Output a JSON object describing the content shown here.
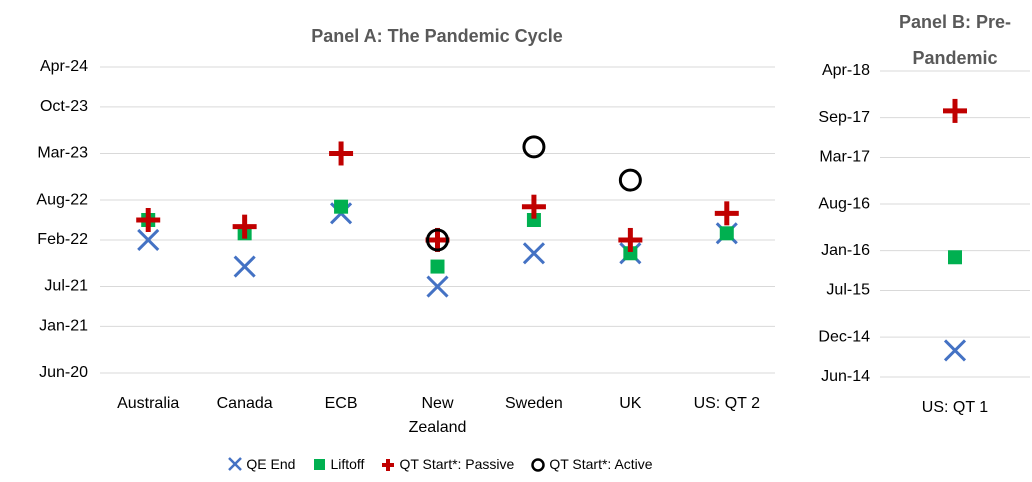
{
  "chart_data": [
    {
      "type": "scatter",
      "title": "Panel A: The Pandemic Cycle",
      "categories": [
        "Australia",
        "Canada",
        "ECB",
        "New Zealand",
        "Sweden",
        "UK",
        "US: QT 2"
      ],
      "series": [
        {
          "name": "QE End",
          "color": "#4472c4",
          "marker": "x",
          "values": [
            "2022-02",
            "2021-10",
            "2022-06",
            "2021-07",
            "2021-12",
            "2021-12",
            "2022-03"
          ]
        },
        {
          "name": "Liftoff",
          "color": "#00b050",
          "marker": "square",
          "values": [
            "2022-05",
            "2022-03",
            "2022-07",
            "2021-10",
            "2022-05",
            "2021-12",
            "2022-03"
          ]
        },
        {
          "name": "QT Start*: Passive",
          "color": "#c00000",
          "marker": "plus",
          "values": [
            "2022-05",
            "2022-04",
            "2023-03",
            "2022-02",
            "2022-07",
            "2022-02",
            "2022-06"
          ]
        },
        {
          "name": "QT Start*: Active",
          "color": "#000000",
          "marker": "circle",
          "values": [
            null,
            null,
            null,
            "2022-02",
            "2023-04",
            "2022-11",
            null
          ]
        }
      ],
      "ylim": [
        "2020-06",
        "2024-04"
      ],
      "yticks": [
        {
          "value": "2020-06",
          "label": "Jun-20"
        },
        {
          "value": "2021-01",
          "label": "Jan-21"
        },
        {
          "value": "2021-07",
          "label": "Jul-21"
        },
        {
          "value": "2022-02",
          "label": "Feb-22"
        },
        {
          "value": "2022-08",
          "label": "Aug-22"
        },
        {
          "value": "2023-03",
          "label": "Mar-23"
        },
        {
          "value": "2023-10",
          "label": "Oct-23"
        },
        {
          "value": "2024-04",
          "label": "Apr-24"
        }
      ],
      "grid": true,
      "legend": "bottom"
    },
    {
      "type": "scatter",
      "title": "Panel B: Pre-Pandemic",
      "categories": [
        "US: QT 1"
      ],
      "series": [
        {
          "name": "QE End",
          "color": "#4472c4",
          "marker": "x",
          "values": [
            "2014-10"
          ]
        },
        {
          "name": "Liftoff",
          "color": "#00b050",
          "marker": "square",
          "values": [
            "2015-12"
          ]
        },
        {
          "name": "QT Start*: Passive",
          "color": "#c00000",
          "marker": "plus",
          "values": [
            "2017-10"
          ]
        },
        {
          "name": "QT Start*: Active",
          "color": "#000000",
          "marker": "circle",
          "values": [
            null
          ]
        }
      ],
      "ylim": [
        "2014-06",
        "2018-04"
      ],
      "yticks": [
        {
          "value": "2014-06",
          "label": "Jun-14"
        },
        {
          "value": "2014-12",
          "label": "Dec-14"
        },
        {
          "value": "2015-07",
          "label": "Jul-15"
        },
        {
          "value": "2016-01",
          "label": "Jan-16"
        },
        {
          "value": "2016-08",
          "label": "Aug-16"
        },
        {
          "value": "2017-03",
          "label": "Mar-17"
        },
        {
          "value": "2017-09",
          "label": "Sep-17"
        },
        {
          "value": "2018-04",
          "label": "Apr-18"
        }
      ],
      "grid": true
    }
  ]
}
